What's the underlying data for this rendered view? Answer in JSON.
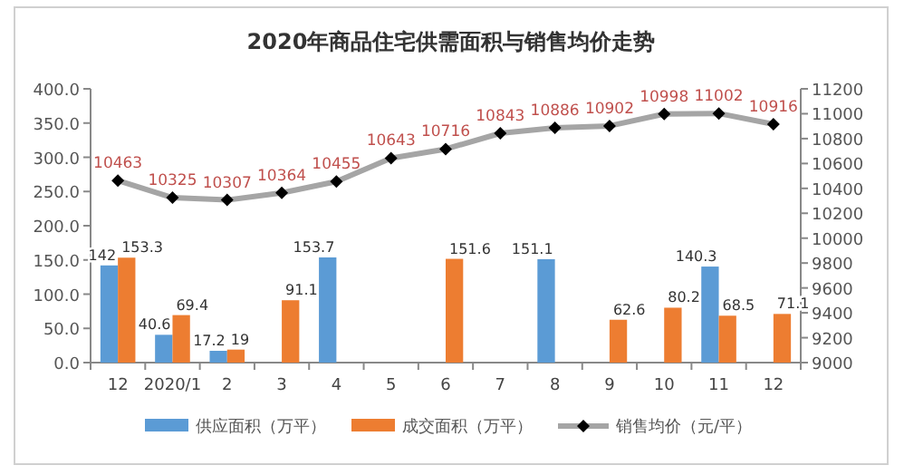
{
  "chart_data": {
    "type": "bar",
    "title": "2020年商品住宅供需面积与销售均价走势",
    "categories": [
      "12",
      "2020/1",
      "2",
      "3",
      "4",
      "5",
      "6",
      "7",
      "8",
      "9",
      "10",
      "11",
      "12"
    ],
    "series": [
      {
        "name": "供应面积（万平）",
        "color": "#5b9bd5",
        "values": [
          142,
          40.6,
          17.2,
          null,
          153.7,
          null,
          null,
          null,
          151.1,
          null,
          null,
          140.3,
          null
        ]
      },
      {
        "name": "成交面积（万平）",
        "color": "#ed7d31",
        "values": [
          153.3,
          69.4,
          19,
          91.1,
          null,
          null,
          151.6,
          null,
          null,
          62.6,
          80.2,
          68.5,
          71.1
        ]
      },
      {
        "name": "销售均价（元/平）",
        "type": "line",
        "axis": "y2",
        "color": "#a5a5a5",
        "values": [
          10463,
          10325,
          10307,
          10364,
          10455,
          10643,
          10716,
          10843,
          10886,
          10902,
          10998,
          11002,
          10916
        ]
      }
    ],
    "ylim": [
      0,
      400
    ],
    "yticks": [
      {
        "value": 0,
        "label": "0.0"
      },
      {
        "value": 50,
        "label": "50.0"
      },
      {
        "value": 100,
        "label": "100.0"
      },
      {
        "value": 150,
        "label": "150.0"
      },
      {
        "value": 200,
        "label": "200.0"
      },
      {
        "value": 250,
        "label": "250.0"
      },
      {
        "value": 300,
        "label": "300.0"
      },
      {
        "value": 350,
        "label": "350.0"
      },
      {
        "value": 400,
        "label": "400.0"
      }
    ],
    "y2lim": [
      9000,
      11200
    ],
    "y2ticks": [
      9000,
      9200,
      9400,
      9600,
      9800,
      10000,
      10200,
      10400,
      10600,
      10800,
      11000,
      11200
    ],
    "marker": "diamond",
    "data_labels": true,
    "legend": "bottom",
    "grid": false
  }
}
